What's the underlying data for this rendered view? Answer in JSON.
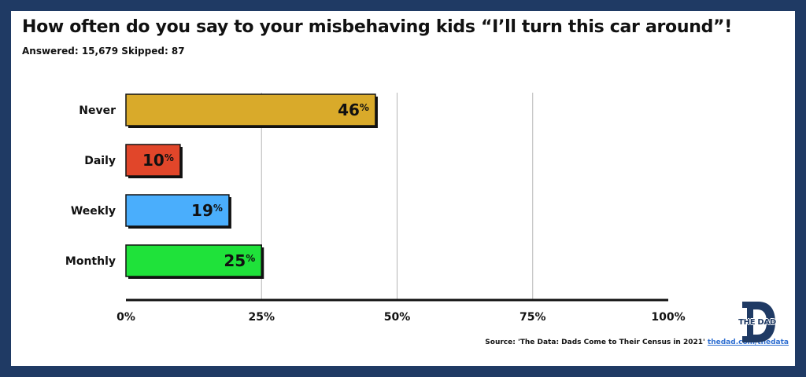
{
  "title": "How often do you say to your misbehaving kids “I’ll turn this car around”!",
  "subtitle": "Answered: 15,679 Skipped: 87",
  "source": {
    "text": "Source: 'The Data: Dads Come to Their Census in 2021'",
    "link": "thedad.com/thedata"
  },
  "logo": {
    "text": "THE DAD",
    "letter": "D"
  },
  "colors": {
    "frame": "#1f3a64",
    "link": "#2f6fd1"
  },
  "chart_data": {
    "type": "bar",
    "orientation": "horizontal",
    "categories": [
      "Never",
      "Daily",
      "Weekly",
      "Monthly"
    ],
    "values": [
      46,
      10,
      19,
      25
    ],
    "colors": [
      "#d9aa2a",
      "#e1462a",
      "#4aaefc",
      "#1fe23a"
    ],
    "value_suffix": "%",
    "xlim": [
      0,
      100
    ],
    "xticks": [
      "0%",
      "25%",
      "50%",
      "75%",
      "100%"
    ],
    "grid": true
  }
}
